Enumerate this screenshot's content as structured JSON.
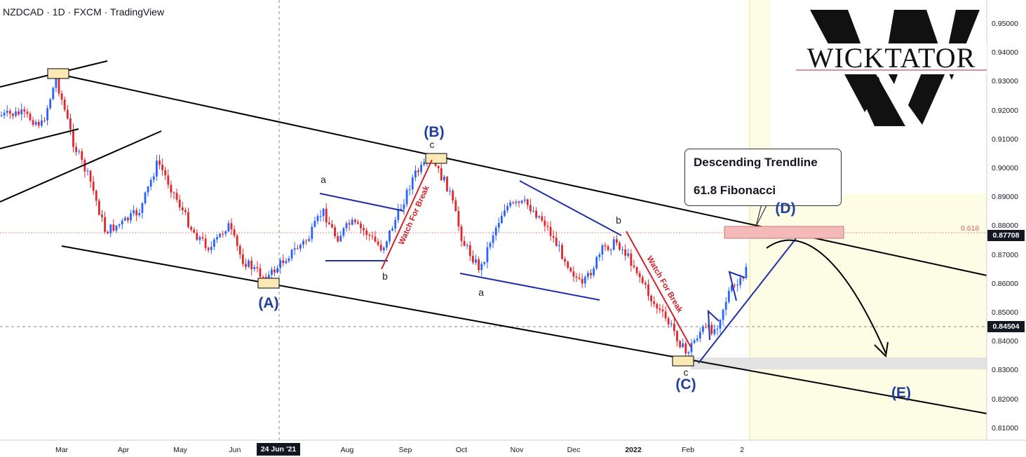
{
  "header": {
    "symbol": "NZDCAD",
    "interval": "1D",
    "source": "FXCM",
    "platform": "TradingView",
    "separator": "·"
  },
  "price_axis": {
    "ticks": [
      "0.95000",
      "0.94000",
      "0.93000",
      "0.92000",
      "0.91000",
      "0.90000",
      "0.89000",
      "0.88000",
      "0.87000",
      "0.86000",
      "0.85000",
      "0.84000",
      "0.83000",
      "0.82000",
      "0.81000"
    ],
    "current_price_tag": "0.87708",
    "crosshair_price_tag": "0.84504"
  },
  "time_axis": {
    "ticks": [
      "Mar",
      "Apr",
      "May",
      "Jun",
      "Aug",
      "Sep",
      "Oct",
      "Nov",
      "Dec",
      "2022",
      "Feb",
      "2"
    ],
    "crosshair_date": "24 Jun '21"
  },
  "annotations": {
    "callout_line1": "Descending Trendline",
    "callout_line2": "61.8 Fibonacci",
    "fib_level": "0.618",
    "watch_break_1": "Watch For Break",
    "watch_break_2": "Watch For Break",
    "waves": {
      "A": "(A)",
      "B": "(B)",
      "C": "(C)",
      "D": "(D)",
      "E": "(E)"
    },
    "subwaves": {
      "a1": "a",
      "b1": "b",
      "c1": "c",
      "a2": "a",
      "b2": "b",
      "c2": "c"
    }
  },
  "logo": {
    "text": "WICKTATOR"
  },
  "colors": {
    "wave_label": "#1f3f9a",
    "bull_candle": "#2962ff",
    "bear_candle": "#e0262b",
    "trendline": "#000000",
    "pattern_line": "#1f2fa6",
    "watch_line": "#d2232a",
    "fib_zone": "#f4b9b9",
    "projection_zone": "#fdfde6"
  }
}
